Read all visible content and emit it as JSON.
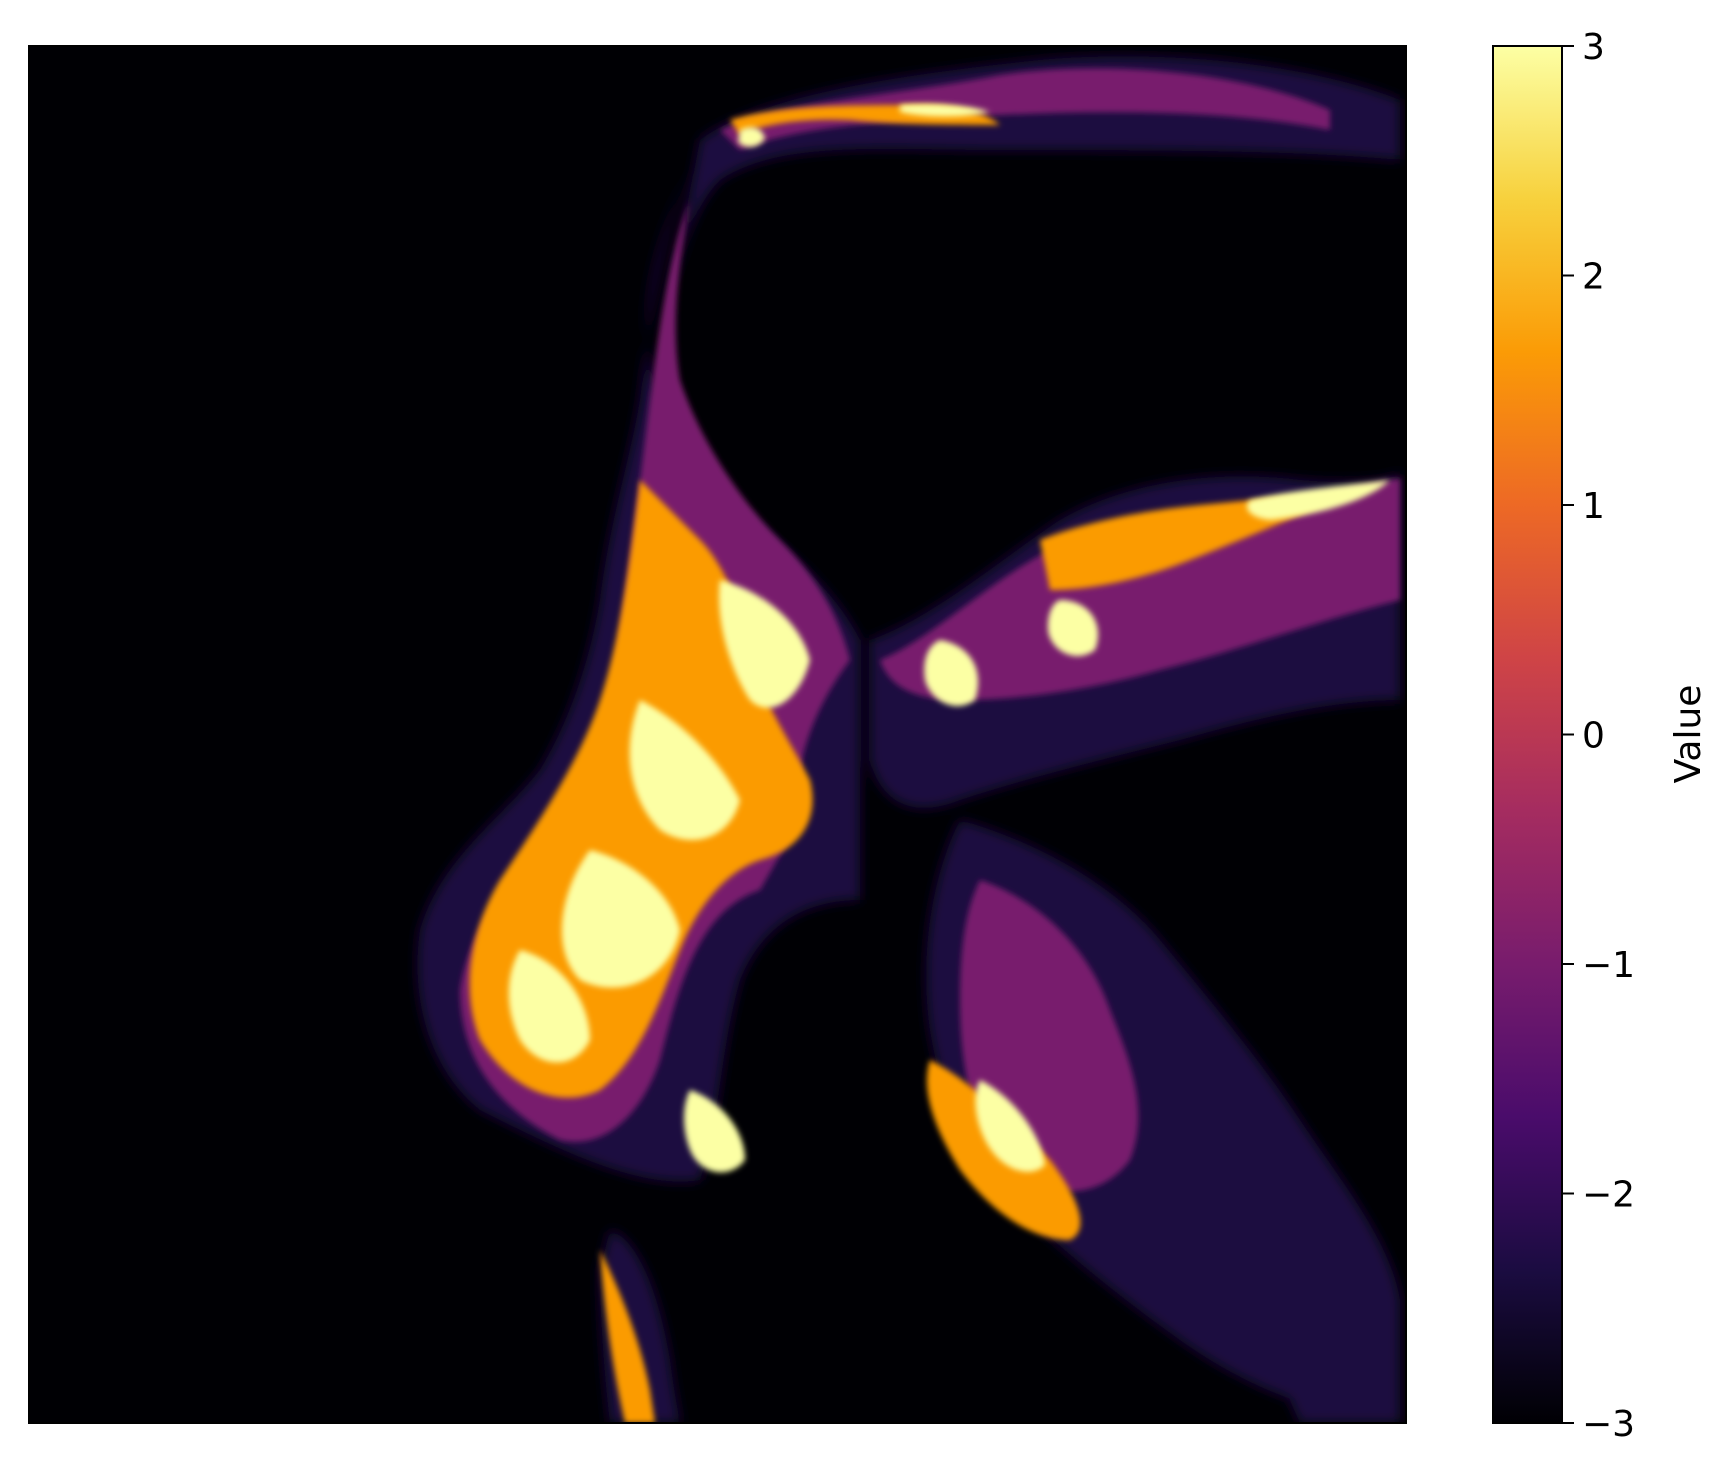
{
  "chart_data": {
    "type": "heatmap",
    "title": "",
    "xlabel": "",
    "ylabel": "",
    "colormap": "inferno",
    "colormap_stops": [
      "#000004",
      "#1b0c41",
      "#4a0c6b",
      "#781c6d",
      "#a52c60",
      "#cf4446",
      "#ed6925",
      "#fb9b06",
      "#f7d13d",
      "#fcffa4"
    ],
    "background_color": "#000004",
    "value_range": [
      -3,
      3
    ],
    "colorbar": {
      "label": "Value",
      "ticks": [
        -3,
        -2,
        -1,
        0,
        1,
        2,
        3
      ],
      "tick_labels": [
        "−3",
        "−2",
        "−1",
        "0",
        "1",
        "2",
        "3"
      ]
    },
    "axes_ticks_visible": false,
    "grid": false
  }
}
